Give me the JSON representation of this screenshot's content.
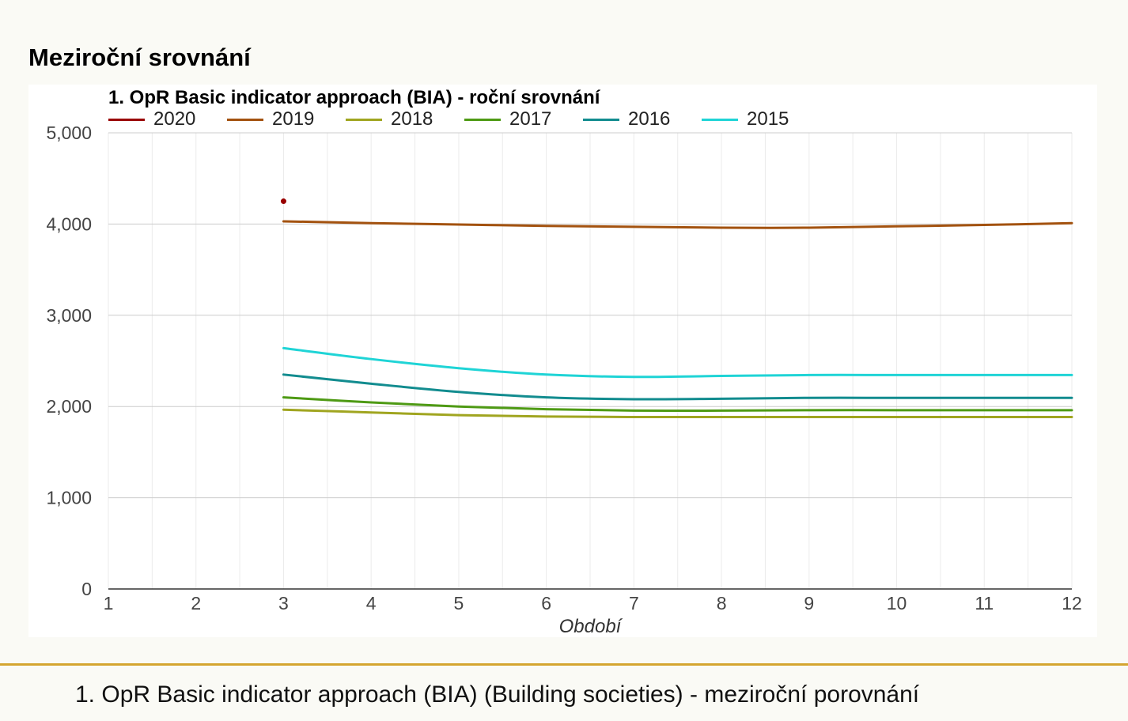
{
  "page": {
    "title": "Meziroční srovnání",
    "footer": "1. OpR Basic indicator approach (BIA) (Building societies) - meziroční porovnání"
  },
  "colors": {
    "background": "#fafaf5",
    "rule": "#d4a530",
    "grid_major": "#cccccc",
    "grid_minor": "#ebebeb",
    "axis": "#333333",
    "tick_text": "#444444"
  },
  "chart_data": {
    "type": "line",
    "title": "1. OpR Basic indicator approach (BIA) - roční srovnání",
    "xlabel": "Období",
    "ylabel": "",
    "x": [
      1,
      2,
      3,
      4,
      5,
      6,
      7,
      8,
      9,
      10,
      11,
      12
    ],
    "xlim": [
      1,
      12
    ],
    "ylim": [
      0,
      5000
    ],
    "yticks": [
      0,
      1000,
      2000,
      3000,
      4000,
      5000
    ],
    "ytick_labels": [
      "0",
      "1,000",
      "2,000",
      "3,000",
      "4,000",
      "5,000"
    ],
    "grid": true,
    "legend_position": "top",
    "series": [
      {
        "name": "2020",
        "color": "#990000",
        "values": [
          null,
          null,
          4250,
          null,
          null,
          null,
          null,
          null,
          null,
          null,
          null,
          null
        ]
      },
      {
        "name": "2019",
        "color": "#a3520f",
        "values": [
          null,
          null,
          4030,
          4010,
          3995,
          3980,
          3970,
          3960,
          3960,
          3975,
          3990,
          4010
        ]
      },
      {
        "name": "2018",
        "color": "#a0a520",
        "values": [
          null,
          null,
          1965,
          1935,
          1905,
          1890,
          1885,
          1885,
          1885,
          1885,
          1885,
          1885
        ]
      },
      {
        "name": "2017",
        "color": "#4e9a14",
        "values": [
          null,
          null,
          2100,
          2045,
          2000,
          1970,
          1955,
          1955,
          1960,
          1960,
          1960,
          1960
        ]
      },
      {
        "name": "2016",
        "color": "#128c8f",
        "values": [
          null,
          null,
          2350,
          2250,
          2160,
          2100,
          2080,
          2085,
          2095,
          2095,
          2095,
          2095
        ]
      },
      {
        "name": "2015",
        "color": "#1fd4d6",
        "values": [
          null,
          null,
          2640,
          2520,
          2420,
          2350,
          2325,
          2335,
          2345,
          2345,
          2345,
          2345
        ]
      }
    ]
  }
}
